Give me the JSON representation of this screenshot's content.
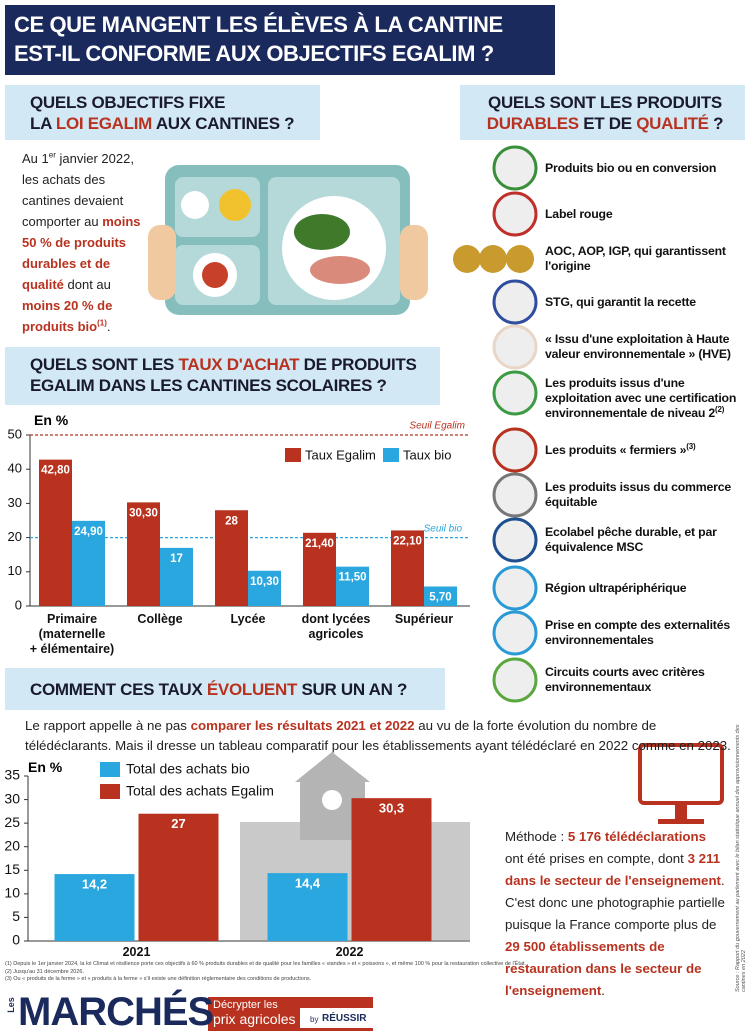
{
  "header": {
    "title_lines": [
      "CE QUE MANGENT LES ÉLÈVES À LA CANTINE",
      "EST-IL CONFORME AUX OBJECTIFS EGALIM ?"
    ]
  },
  "objectives": {
    "heading": [
      "QUELS OBJECTIFS FIXE",
      "LA ",
      "LOI EGALIM",
      " AUX CANTINES ?"
    ],
    "text": [
      "Au 1",
      "er",
      " janvier 2022, les achats des cantines devaient comporter au ",
      "moins 50 % de produits durables et de qualité",
      " dont au ",
      "moins 20 % de produits bio",
      "(1)",
      "."
    ]
  },
  "products": {
    "heading": [
      "QUELS SONT LES PRODUITS",
      "DURABLES",
      " ET DE ",
      "QUALITÉ",
      " ?"
    ],
    "items": [
      {
        "text": "Produits bio ou en conversion"
      },
      {
        "text": "Label rouge"
      },
      {
        "text": "AOC, AOP, IGP, qui garantissent l'origine"
      },
      {
        "text": "STG, qui garantit la recette"
      },
      {
        "text": "« Issu d'une exploitation à Haute valeur environnementale » (HVE)"
      },
      {
        "text": "Les produits issus d'une exploitation avec une certification environnementale de niveau 2",
        "note": "(2)"
      },
      {
        "text": "Les produits « fermiers »",
        "note": "(3)"
      },
      {
        "text": "Les produits issus du commerce équitable"
      },
      {
        "text": "Ecolabel pêche durable, et par équivalence MSC"
      },
      {
        "text": "Région ultrapériphérique"
      },
      {
        "text": "Prise en compte des externalités environnementales"
      },
      {
        "text": "Circuits courts avec critères environnementaux"
      }
    ]
  },
  "rates": {
    "heading": [
      "QUELS SONT LES ",
      "TAUX D'ACHAT",
      " DE PRODUITS",
      "EGALIM DANS LES CANTINES SCOLAIRES ?"
    ]
  },
  "evolution": {
    "heading": [
      "COMMENT CES TAUX ",
      "ÉVOLUENT",
      " SUR UN AN ?"
    ],
    "text": [
      "Le rapport appelle à ne pas ",
      "comparer les résultats 2021 et 2022",
      " au vu de la forte évolution du nombre de télédéclarants. Mais il dresse un tableau comparatif pour les établissements ayant télédéclaré en 2022 comme en 2023."
    ]
  },
  "method": {
    "text": [
      "Méthode : ",
      "5 176 télédéclarations",
      " ont été prises en compte, dont ",
      "3 211 dans le secteur de l'enseignement",
      ". C'est donc une photographie partielle puisque la France comporte plus de ",
      "29 500 établissements de restauration dans le secteur de l'enseignement",
      "."
    ]
  },
  "footnotes": [
    "(1) Depuis le 1er janvier 2024, la loi Climat et résilience porte ces objectifs à 60 % produits durables et de qualité pour les familles « viandes » et « poissons », et même 100 % pour la restauration collective de l'État.",
    "(2) Jusqu'au 31 décembre 2026.",
    "(3) Ou « produits de la ferme » et « produits à la ferme » s'il existe une définition réglementaire des conditions de productions."
  ],
  "source": "Source : Rapport du gouvernement au parlement avec le bilan statistique annuel des approvisionnements des cantines en 2022",
  "footer": {
    "brand_prefix": "Les",
    "brand": "MARCHÉS",
    "tagline": [
      "Décrypter les",
      "prix agricoles"
    ],
    "by": "by",
    "publisher": "RÉUSSIR"
  },
  "chart_data": [
    {
      "type": "bar",
      "ylabel": "En %",
      "categories": [
        "Primaire\n(maternelle\n+ élémentaire)",
        "Collège",
        "Lycée",
        "dont lycées\nagricoles",
        "Supérieur"
      ],
      "series": [
        {
          "name": "Taux Egalim",
          "color": "#b8321f",
          "values": [
            42.8,
            30.3,
            28,
            21.4,
            22.1
          ],
          "value_labels": [
            "42,80",
            "30,30",
            "28",
            "21,40",
            "22,10"
          ]
        },
        {
          "name": "Taux bio",
          "color": "#2aa7de",
          "values": [
            24.9,
            17,
            10.3,
            11.5,
            5.7
          ],
          "value_labels": [
            "24,90",
            "17",
            "10,30",
            "11,50",
            "5,70"
          ]
        }
      ],
      "ylim": [
        0,
        50
      ],
      "yticks": [
        0,
        10,
        20,
        30,
        40,
        50
      ],
      "grid": false,
      "reference_lines": [
        {
          "value": 50,
          "label": "Seuil Egalim",
          "color": "#b8321f"
        },
        {
          "value": 20,
          "label": "Seuil bio",
          "color": "#2aa7de"
        }
      ]
    },
    {
      "type": "bar",
      "ylabel": "En %",
      "categories": [
        "2021",
        "2022"
      ],
      "series": [
        {
          "name": "Total des achats bio",
          "color": "#2aa7de",
          "values": [
            14.2,
            14.4
          ],
          "value_labels": [
            "14,2",
            "14,4"
          ]
        },
        {
          "name": "Total des achats Egalim",
          "color": "#b8321f",
          "values": [
            27,
            30.3
          ],
          "value_labels": [
            "27",
            "30,3"
          ]
        }
      ],
      "ylim": [
        0,
        35
      ],
      "yticks": [
        0,
        5,
        10,
        15,
        20,
        25,
        30,
        35
      ],
      "grid": false
    }
  ]
}
